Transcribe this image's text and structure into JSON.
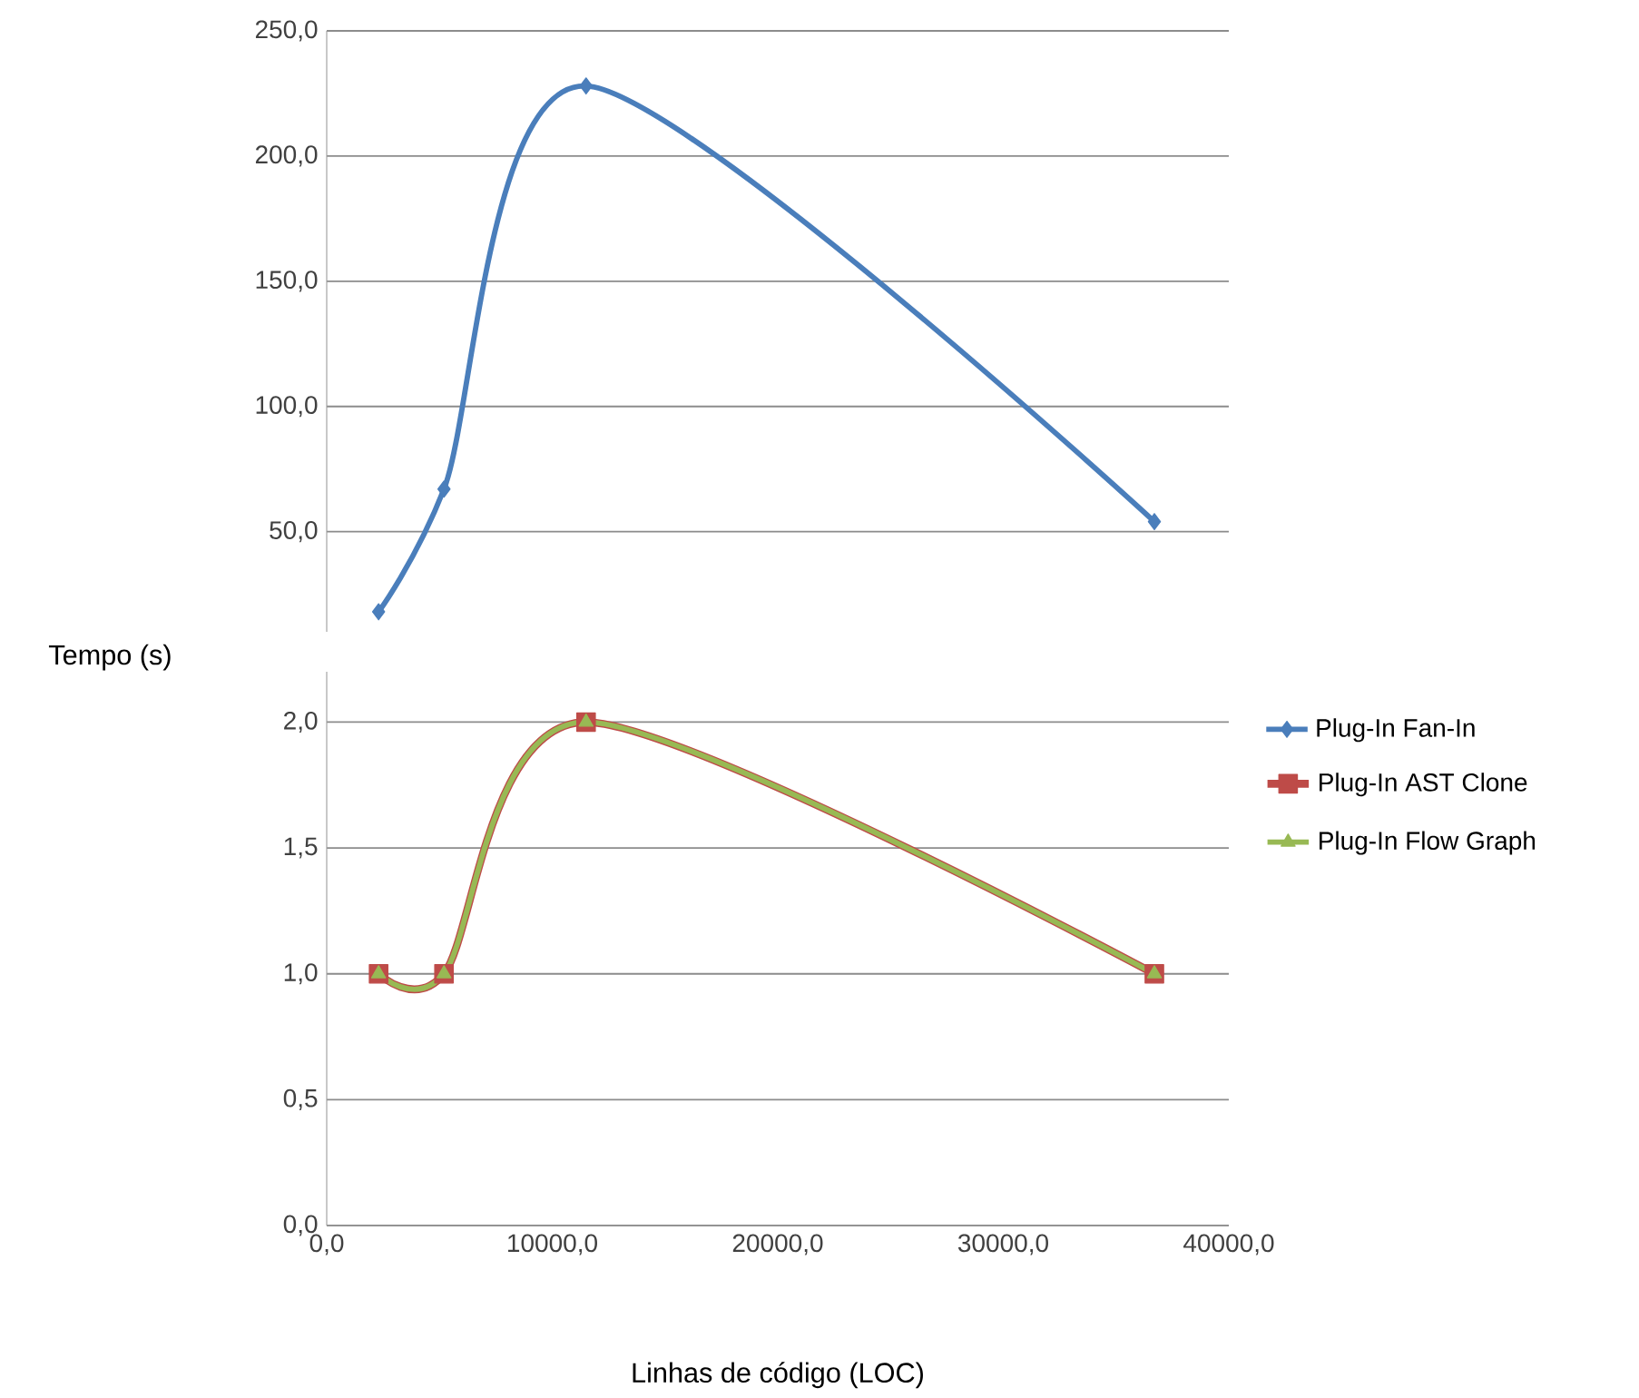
{
  "chart_data": [
    {
      "type": "line",
      "x": [
        2300,
        5200,
        11500,
        36700
      ],
      "xlim": [
        0,
        40000
      ],
      "ylim": [
        10,
        250
      ],
      "yticks": [
        {
          "value": 50,
          "label": "50,0"
        },
        {
          "value": 100,
          "label": "100,0"
        },
        {
          "value": 150,
          "label": "150,0"
        },
        {
          "value": 200,
          "label": "200,0"
        },
        {
          "value": 250,
          "label": "250,0"
        }
      ],
      "grid": "y",
      "legend": "right",
      "tick_labels": "y",
      "series": [
        {
          "name": "Plug-In Fan-In",
          "color": "#4a7ebb",
          "marker": "diamond",
          "values": [
            18,
            67,
            228,
            54
          ]
        }
      ]
    },
    {
      "type": "line",
      "x": [
        2300,
        5200,
        11500,
        36700
      ],
      "xlim": [
        0,
        40000
      ],
      "ylim": [
        0,
        2.2
      ],
      "xticks": [
        {
          "value": 0,
          "label": "0,0"
        },
        {
          "value": 10000,
          "label": "10000,0"
        },
        {
          "value": 20000,
          "label": "20000,0"
        },
        {
          "value": 30000,
          "label": "30000,0"
        },
        {
          "value": 40000,
          "label": "40000,0"
        }
      ],
      "yticks": [
        {
          "value": 0,
          "label": "0,0"
        },
        {
          "value": 0.5,
          "label": "0,5"
        },
        {
          "value": 1,
          "label": "1,0"
        },
        {
          "value": 1.5,
          "label": "1,5"
        },
        {
          "value": 2,
          "label": "2,0"
        }
      ],
      "xlabel": "Linhas de código (LOC)",
      "ylabel": "Tempo (s)",
      "grid": "y",
      "legend": "right",
      "series": [
        {
          "name": "Plug-In AST Clone",
          "color": "#be4b48",
          "marker": "square",
          "values": [
            1,
            1,
            2,
            1
          ]
        },
        {
          "name": "Plug-In Flow Graph",
          "color": "#98b954",
          "marker": "triangle",
          "values": [
            1,
            1,
            2,
            1
          ]
        }
      ]
    }
  ]
}
